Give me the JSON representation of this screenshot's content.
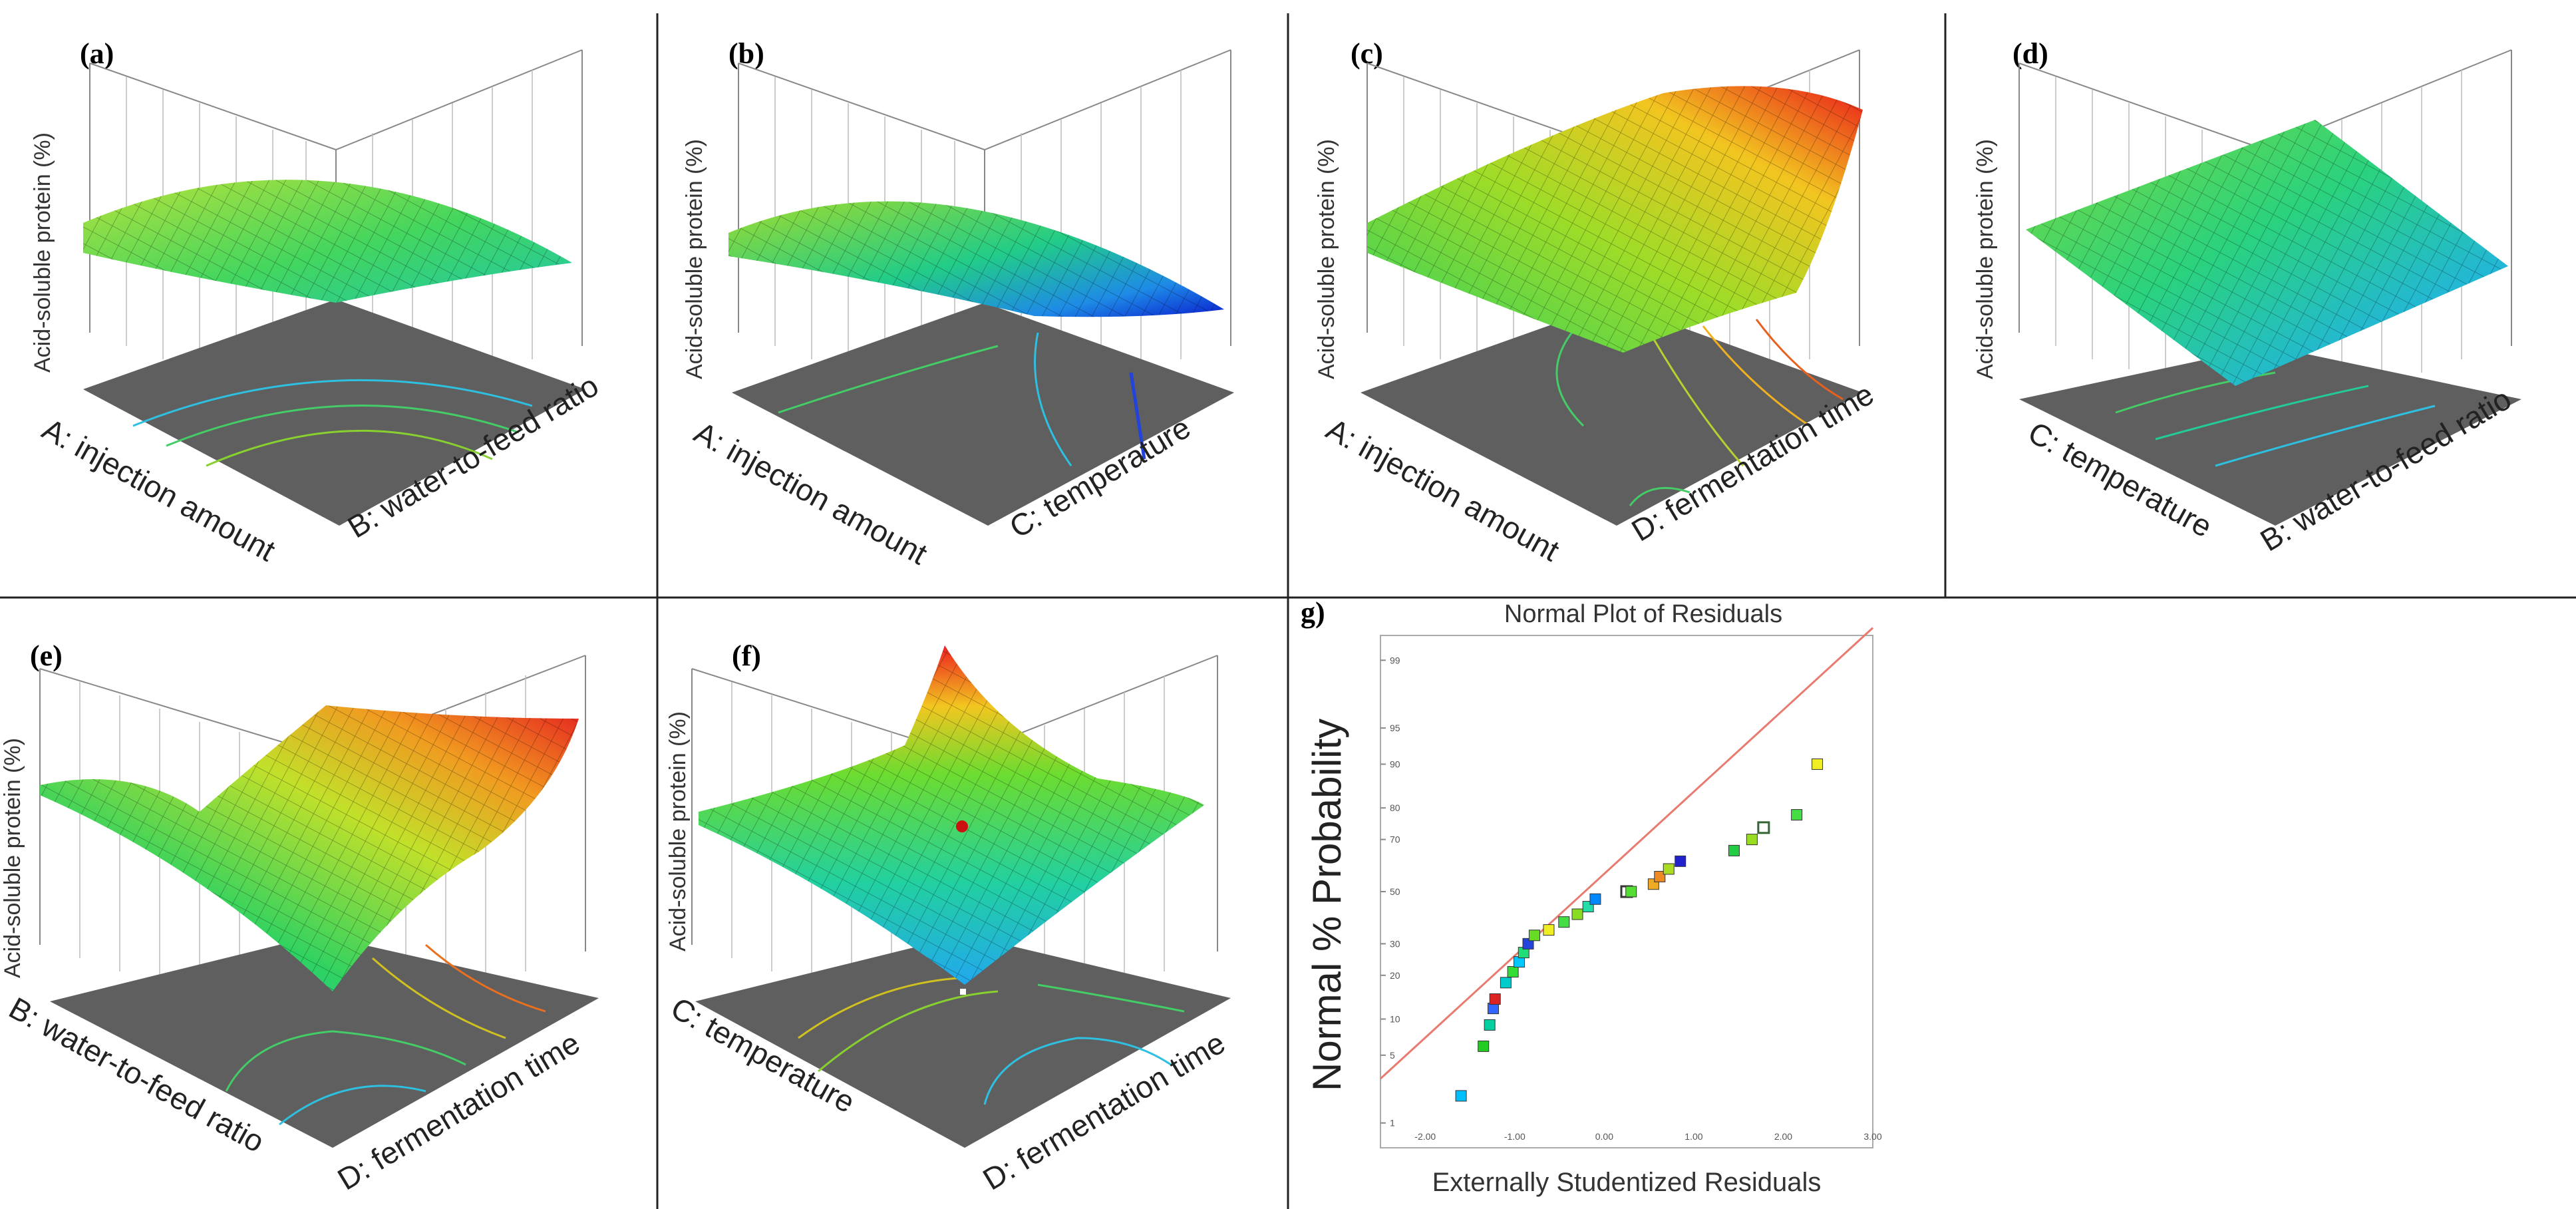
{
  "chart_data": [
    {
      "panel": "(a)",
      "type": "surface3d",
      "zlabel": "Acid-soluble protein (%)",
      "xlabel": "A: injection amount",
      "ylabel": "B: water-to-feed ratio",
      "colormap": "rainbow (blue-cyan-green-yellow-red)",
      "contour_floor": true
    },
    {
      "panel": "(b)",
      "type": "surface3d",
      "zlabel": "Acid-soluble protein (%)",
      "xlabel": "A: injection amount",
      "ylabel": "C: temperature",
      "colormap": "rainbow (blue-cyan-green-yellow-red)",
      "contour_floor": true
    },
    {
      "panel": "(c)",
      "type": "surface3d",
      "zlabel": "Acid-soluble protein (%)",
      "xlabel": "A: injection amount",
      "ylabel": "D: fermentation time",
      "colormap": "rainbow (blue-cyan-green-yellow-red)",
      "contour_floor": true
    },
    {
      "panel": "(d)",
      "type": "surface3d",
      "zlabel": "Acid-soluble protein (%)",
      "xlabel": "C: temperature",
      "ylabel": "B: water-to-feed ratio",
      "colormap": "rainbow (blue-cyan-green-yellow-red)",
      "contour_floor": true
    },
    {
      "panel": "(e)",
      "type": "surface3d",
      "zlabel": "Acid-soluble protein (%)",
      "xlabel": "B: water-to-feed ratio",
      "ylabel": "D: fermentation time",
      "colormap": "rainbow (blue-cyan-green-yellow-red)",
      "contour_floor": true
    },
    {
      "panel": "(f)",
      "type": "surface3d",
      "zlabel": "Acid-soluble protein (%)",
      "xlabel": "C: temperature",
      "ylabel": "D: fermentation time",
      "colormap": "rainbow (blue-cyan-green-yellow-red)",
      "contour_floor": true
    },
    {
      "panel": "g)",
      "type": "scatter",
      "title": "Normal Plot of Residuals",
      "xlabel": "Externally Studentized Residuals",
      "ylabel": "Normal % Probability",
      "xlim": [
        -2.5,
        3.0
      ],
      "ylim": [
        0.5,
        99.5
      ],
      "x_ticks": [
        "-2.00",
        "-1.00",
        "0.00",
        "1.00",
        "2.00",
        "3.00"
      ],
      "y_ticks": [
        "1",
        "5",
        "10",
        "20",
        "30",
        "50",
        "70",
        "80",
        "90",
        "95",
        "99"
      ],
      "reference_line": {
        "color": "#e87a6f",
        "x": [
          -2.5,
          3.0
        ],
        "y": [
          3.0,
          99.6
        ]
      },
      "points": [
        {
          "x": -1.6,
          "y": 2,
          "color": "#00bfff"
        },
        {
          "x": -1.35,
          "y": 6,
          "color": "#22cc22"
        },
        {
          "x": -1.28,
          "y": 9,
          "color": "#00d0a0"
        },
        {
          "x": -1.24,
          "y": 12,
          "color": "#3366ff"
        },
        {
          "x": -1.22,
          "y": 14,
          "color": "#dd2222"
        },
        {
          "x": -1.1,
          "y": 18,
          "color": "#00cccc"
        },
        {
          "x": -1.02,
          "y": 21,
          "color": "#33dd33"
        },
        {
          "x": -0.95,
          "y": 24,
          "color": "#00c8ff"
        },
        {
          "x": -0.9,
          "y": 27,
          "color": "#22dd77"
        },
        {
          "x": -0.85,
          "y": 30,
          "color": "#2244dd"
        },
        {
          "x": -0.78,
          "y": 33,
          "color": "#66dd22"
        },
        {
          "x": -0.62,
          "y": 35,
          "color": "#eeee22"
        },
        {
          "x": -0.45,
          "y": 38,
          "color": "#44dd44"
        },
        {
          "x": -0.3,
          "y": 41,
          "color": "#88dd22"
        },
        {
          "x": -0.18,
          "y": 44,
          "color": "#22ddaa"
        },
        {
          "x": -0.1,
          "y": 47,
          "color": "#0088ff"
        },
        {
          "x": 0.25,
          "y": 50,
          "color": "#ffffff",
          "outline": "#333333"
        },
        {
          "x": 0.3,
          "y": 50,
          "color": "#55dd33"
        },
        {
          "x": 0.55,
          "y": 53,
          "color": "#eeaa22"
        },
        {
          "x": 0.62,
          "y": 56,
          "color": "#ee8822"
        },
        {
          "x": 0.72,
          "y": 59,
          "color": "#aadd22"
        },
        {
          "x": 0.85,
          "y": 62,
          "color": "#2222cc"
        },
        {
          "x": 1.45,
          "y": 66,
          "color": "#22cc44"
        },
        {
          "x": 1.65,
          "y": 70,
          "color": "#99dd22"
        },
        {
          "x": 1.78,
          "y": 74,
          "color": "#ffffff",
          "outline": "#336633"
        },
        {
          "x": 2.15,
          "y": 78,
          "color": "#44dd44"
        },
        {
          "x": 2.38,
          "y": 90,
          "color": "#eeee22"
        }
      ]
    }
  ]
}
